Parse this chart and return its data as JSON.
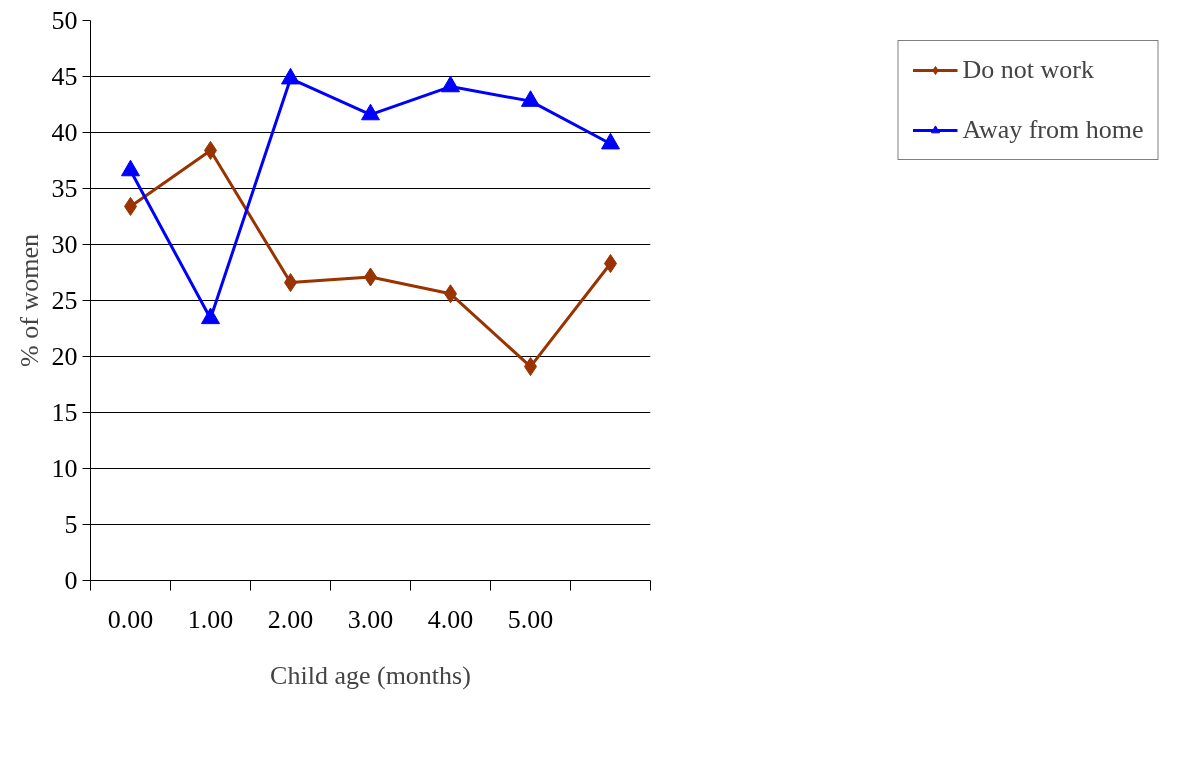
{
  "chart_data": {
    "type": "line",
    "xlabel": "Child age (months)",
    "ylabel": "% of women",
    "categories": [
      "0.00",
      "1.00",
      "2.00",
      "3.00",
      "4.00",
      "5.00",
      null
    ],
    "series": [
      {
        "name": "Do not work",
        "color": "#993300",
        "marker": "diamond",
        "values": [
          33.4,
          38.4,
          26.6,
          27.1,
          25.6,
          19.1,
          28.3
        ]
      },
      {
        "name": "Away from home",
        "color": "#0000ff",
        "marker": "triangle",
        "values": [
          36.6,
          23.4,
          44.8,
          41.6,
          44.1,
          42.8,
          39.0
        ]
      }
    ],
    "ylim": [
      0,
      50
    ],
    "yticks": [
      0,
      5,
      10,
      15,
      20,
      25,
      30,
      35,
      40,
      45,
      50
    ],
    "grid": "y",
    "legend": "right",
    "line_style": "solid"
  }
}
